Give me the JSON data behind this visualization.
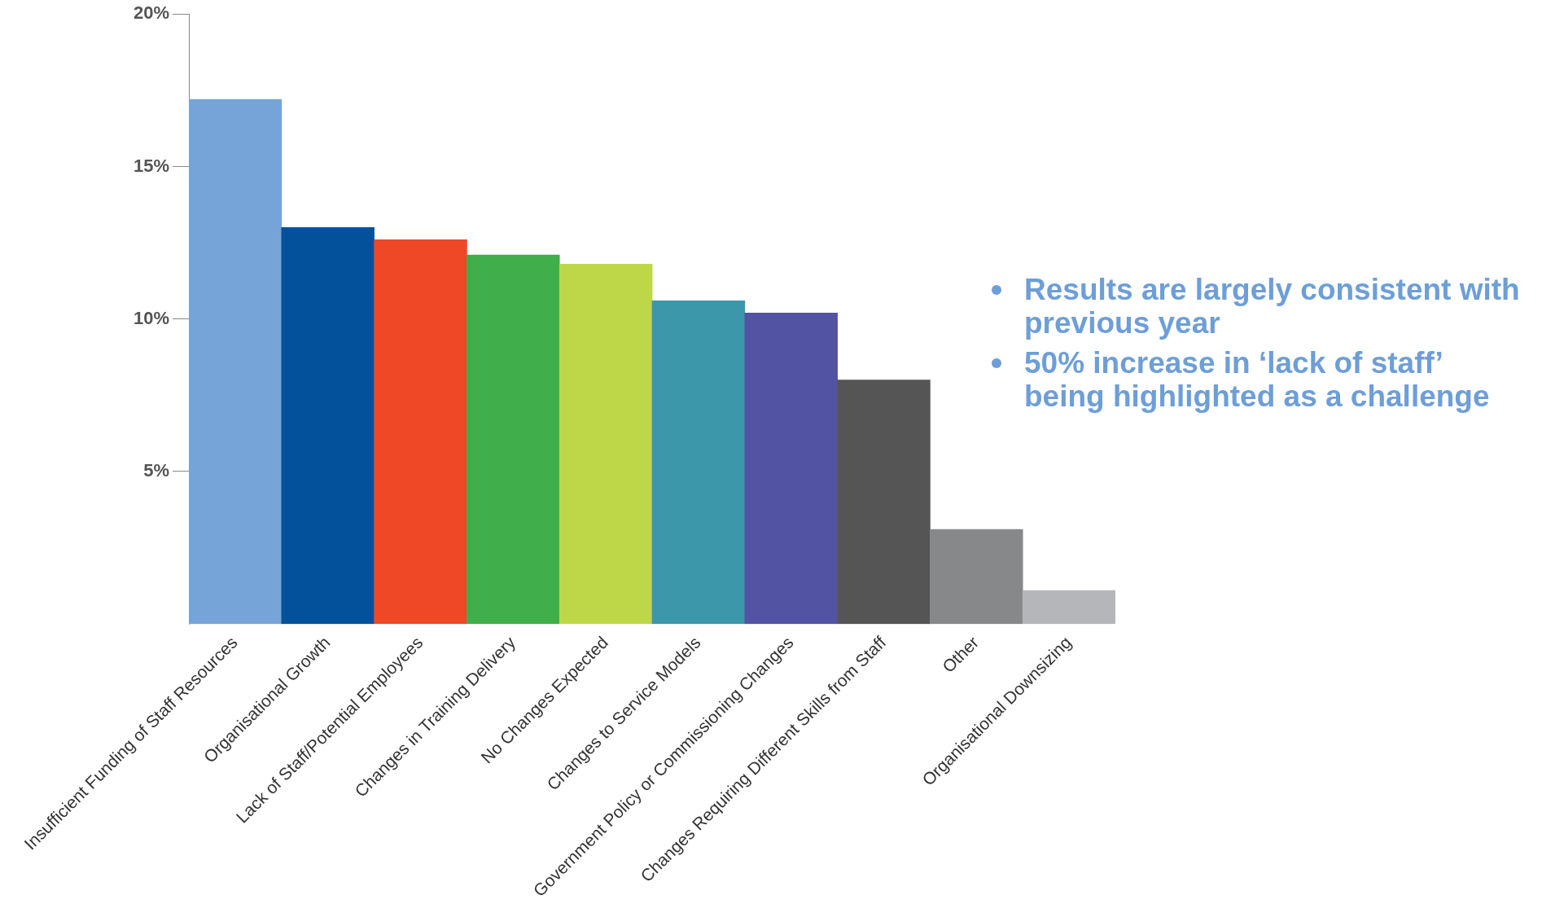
{
  "chart_data": {
    "type": "bar",
    "categories": [
      "Insufficient Funding of Staff Resources",
      "Organisational Growth",
      "Lack of Staff/Potential Employees",
      "Changes in Training Delivery",
      "No Changes Expected",
      "Changes to Service Models",
      "Government Policy or Commissioning Changes",
      "Changes Requiring Different Skills from Staff",
      "Other",
      "Organisational Downsizing"
    ],
    "values": [
      17.2,
      13.0,
      12.6,
      12.1,
      11.8,
      10.6,
      10.2,
      8.0,
      3.1,
      1.1
    ],
    "colors": [
      "#77a4d8",
      "#03519b",
      "#ee4827",
      "#40ae4a",
      "#bed748",
      "#3b97a9",
      "#5253a3",
      "#555555",
      "#87888a",
      "#b5b6b9"
    ],
    "ylim": [
      0,
      20
    ],
    "yticks": [
      {
        "value": 5,
        "label": "5%"
      },
      {
        "value": 10,
        "label": "10%"
      },
      {
        "value": 15,
        "label": "15%"
      },
      {
        "value": 20,
        "label": "20%"
      }
    ],
    "grid": false,
    "legend": false,
    "annotations": [
      "Results are largely consistent with previous year",
      "50% increase in ‘lack of staff’ being highlighted as a challenge"
    ]
  }
}
